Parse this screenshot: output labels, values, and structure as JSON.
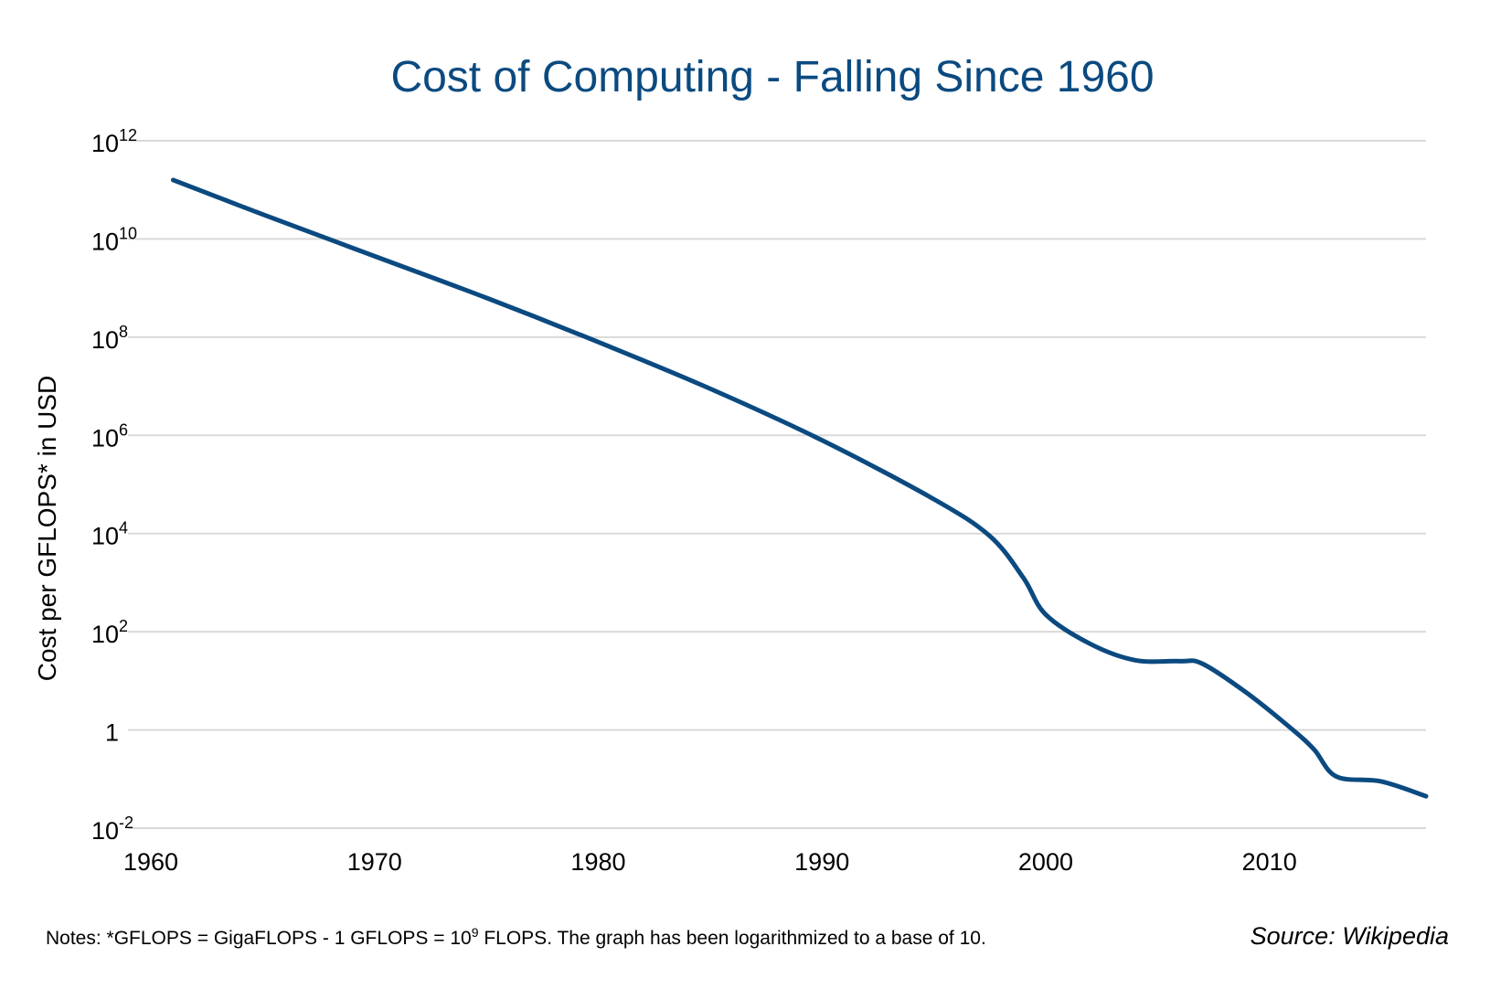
{
  "chart_data": {
    "type": "line",
    "title": "Cost of Computing - Falling Since 1960",
    "xlabel": "",
    "ylabel": "Cost per GFLOPS* in USD",
    "yscale": "log10",
    "xlim": [
      1960,
      2017
    ],
    "ylim_log10": [
      -2,
      12
    ],
    "grid": true,
    "x_ticks": [
      "1960",
      "1970",
      "1980",
      "1990",
      "2000",
      "2010"
    ],
    "y_ticks": [
      {
        "base": "10",
        "exp": "12"
      },
      {
        "base": "10",
        "exp": "10"
      },
      {
        "base": "10",
        "exp": "8"
      },
      {
        "base": "10",
        "exp": "6"
      },
      {
        "base": "10",
        "exp": "4"
      },
      {
        "base": "10",
        "exp": "2"
      },
      {
        "base": "1",
        "exp": ""
      },
      {
        "base": "10",
        "exp": "-2"
      }
    ],
    "series": [
      {
        "name": "Cost per GFLOPS",
        "x": [
          1961,
          1965,
          1970,
          1975,
          1980,
          1985,
          1990,
          1995,
          1997.5,
          1999,
          2000,
          2002,
          2004,
          2006,
          2007,
          2009,
          2011,
          2012,
          2013,
          2015,
          2017
        ],
        "log10_y": [
          11.2,
          10.5,
          9.65,
          8.8,
          7.9,
          6.95,
          5.9,
          4.7,
          3.95,
          3.1,
          2.35,
          1.75,
          1.42,
          1.4,
          1.35,
          0.75,
          0.02,
          -0.4,
          -0.95,
          -1.05,
          -1.35
        ]
      }
    ]
  },
  "footer": {
    "note_prefix": "Notes: *GFLOPS = GigaFLOPS - 1 GFLOPS = 10",
    "note_exp": "9",
    "note_suffix": " FLOPS. The graph has been logarithmized to a base of 10.",
    "source": "Source: Wikipedia"
  },
  "colors": {
    "series": "#0b4a80",
    "title": "#0b4a80",
    "grid": "#d9d9d9"
  }
}
